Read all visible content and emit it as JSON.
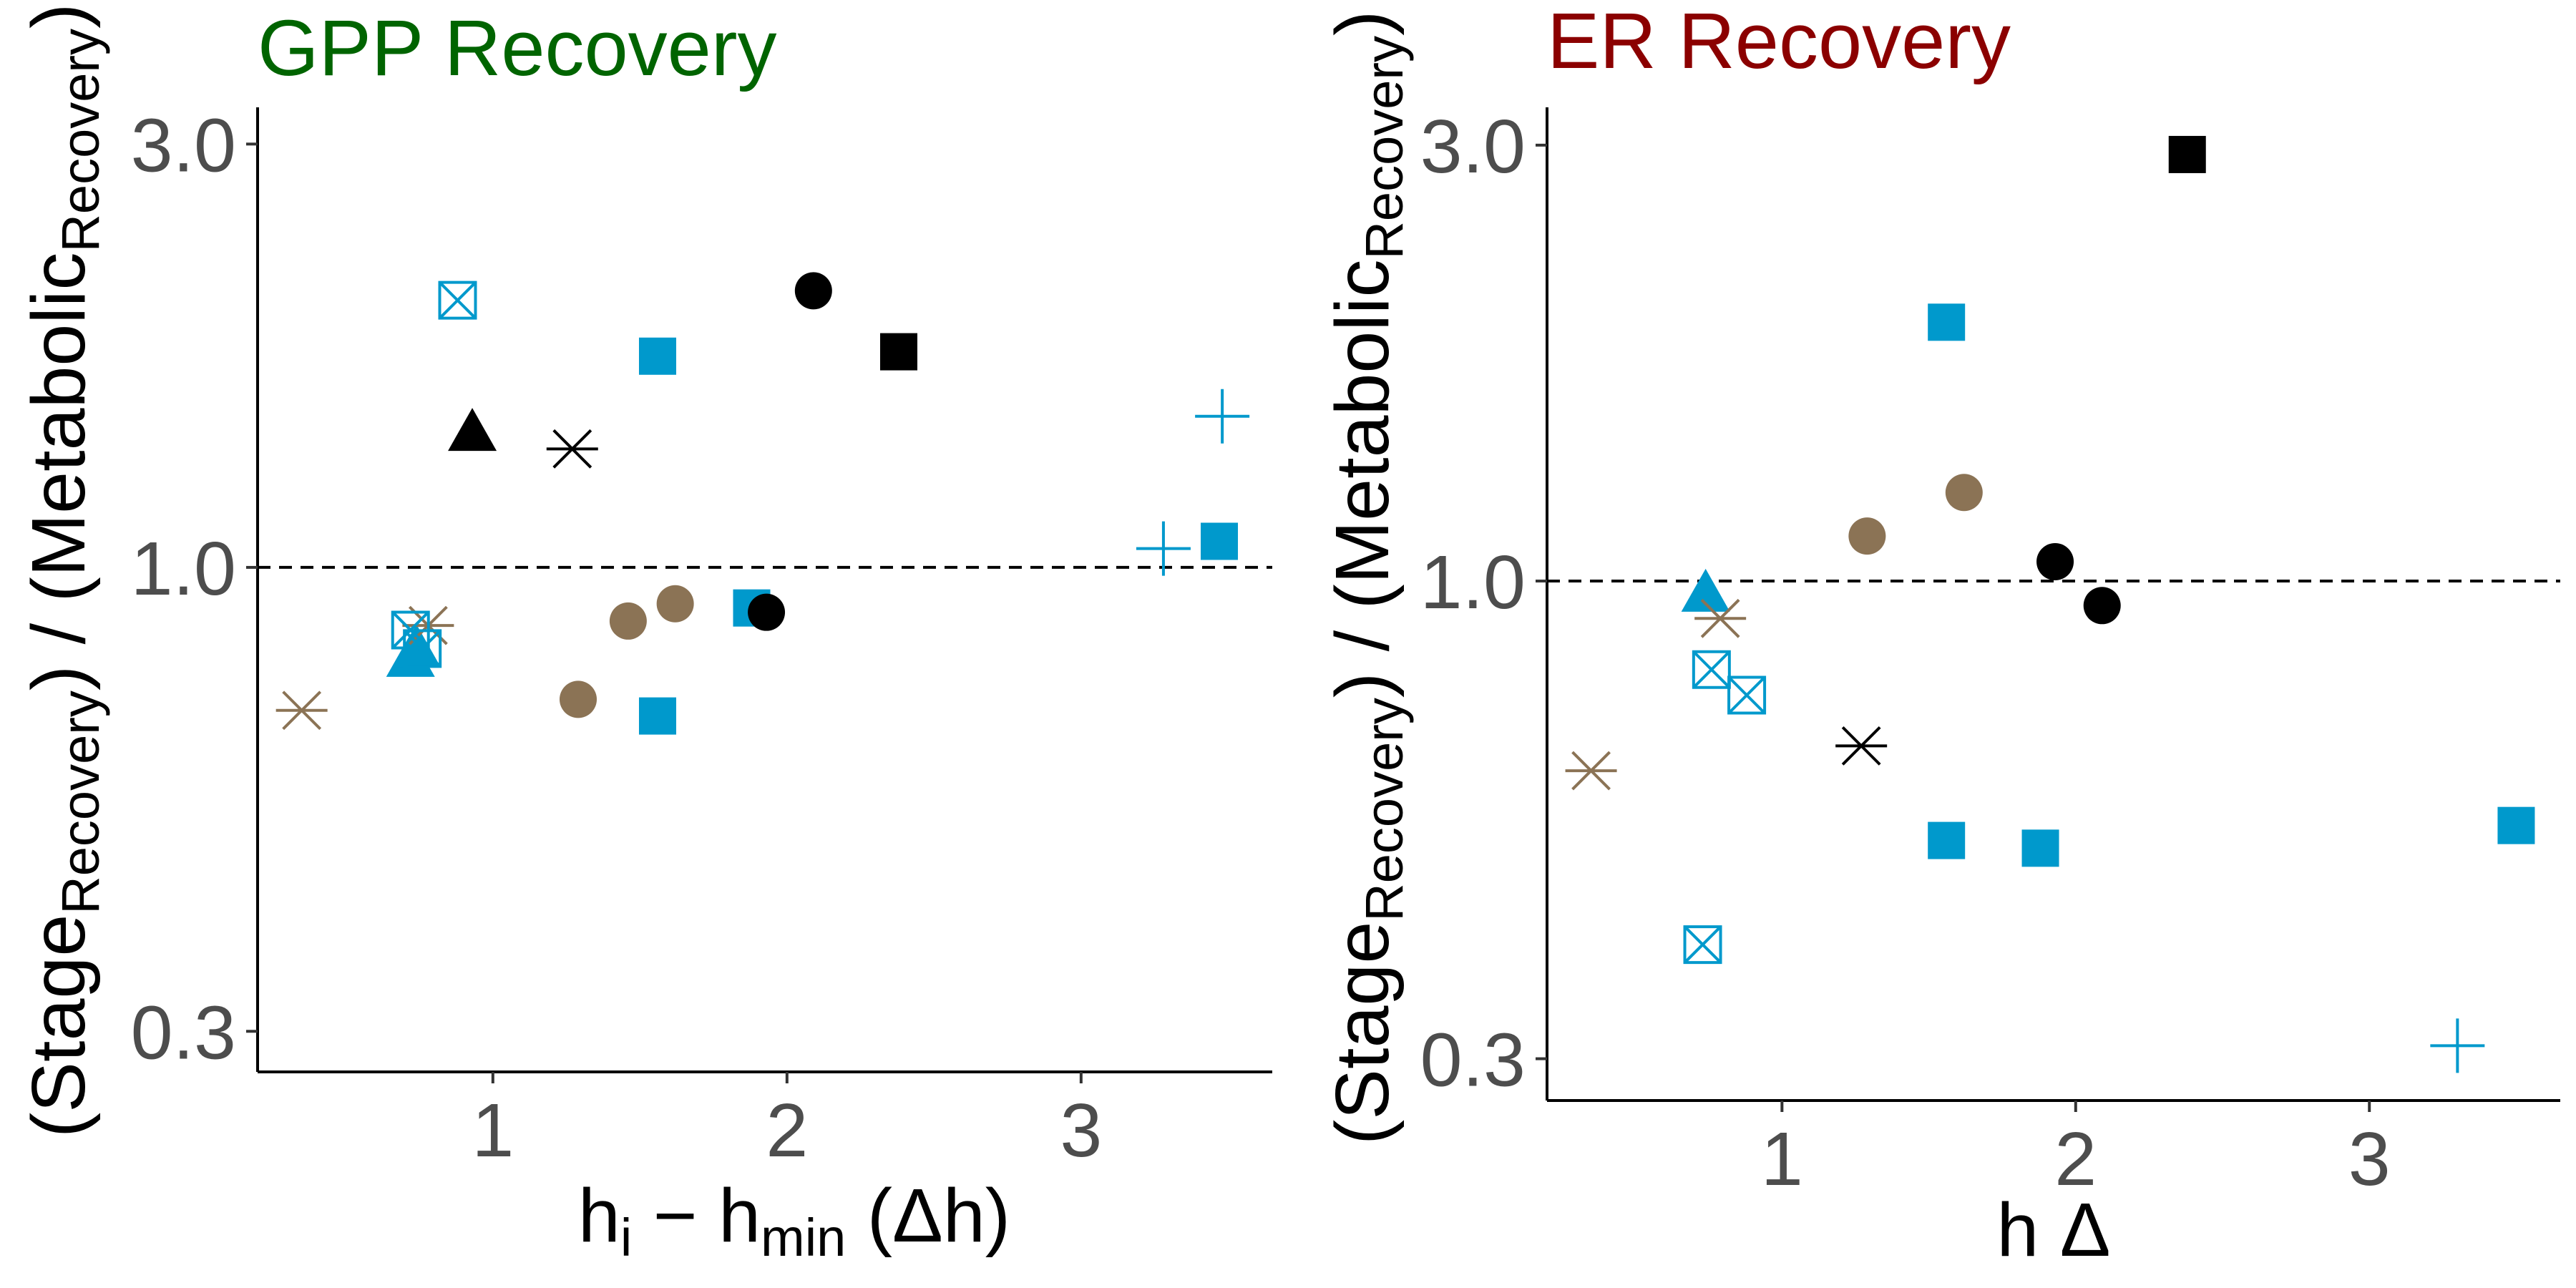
{
  "colors": {
    "gpp_title": "#006400",
    "er_title": "#8b0000",
    "black": "#000000",
    "blue": "#0099cc",
    "brown": "#8b7355"
  },
  "chart_data": [
    {
      "type": "scatter",
      "title": "GPP Recovery",
      "title_color": "#006400",
      "xlabel": "h_i − h_min (Δh)",
      "xlabel_parts": {
        "h1": "h",
        "sub1": "i",
        "op": " − ",
        "h2": "h",
        "sub2": "min",
        "paren": " (Δh)"
      },
      "ylabel_parts": {
        "a": "(Stage",
        "a_sub": "Recovery",
        "b": ") / (Metabolic",
        "b_sub": "Recovery",
        "c": ")"
      },
      "y_scale": "log",
      "xlim": [
        0.2,
        3.65
      ],
      "ylim": [
        0.27,
        3.3
      ],
      "x_ticks": [
        1,
        2,
        3
      ],
      "x_tick_labels": [
        "1",
        "2",
        "3"
      ],
      "y_ticks": [
        0.3,
        1.0,
        3.0
      ],
      "y_tick_labels": [
        "0.3",
        "1.0",
        "3.0"
      ],
      "reference_line": 1.0,
      "points": [
        {
          "x": 0.35,
          "y": 0.69,
          "shape": "asterisk",
          "color": "#8b7355"
        },
        {
          "x": 0.72,
          "y": 0.79,
          "shape": "triangle",
          "color": "#0099cc"
        },
        {
          "x": 0.74,
          "y": 0.81,
          "shape": "triangle",
          "color": "#0099cc"
        },
        {
          "x": 0.78,
          "y": 0.86,
          "shape": "asterisk",
          "color": "#8b7355"
        },
        {
          "x": 0.72,
          "y": 0.85,
          "shape": "boxx",
          "color": "#0099cc"
        },
        {
          "x": 0.76,
          "y": 0.81,
          "shape": "boxx",
          "color": "#0099cc"
        },
        {
          "x": 0.88,
          "y": 2.0,
          "shape": "boxx",
          "color": "#0099cc"
        },
        {
          "x": 0.93,
          "y": 1.42,
          "shape": "triangle",
          "color": "#000000"
        },
        {
          "x": 1.27,
          "y": 1.36,
          "shape": "asterisk",
          "color": "#000000"
        },
        {
          "x": 1.29,
          "y": 0.71,
          "shape": "circle",
          "color": "#8b7355"
        },
        {
          "x": 1.46,
          "y": 0.87,
          "shape": "circle",
          "color": "#8b7355"
        },
        {
          "x": 1.62,
          "y": 0.91,
          "shape": "circle",
          "color": "#8b7355"
        },
        {
          "x": 1.56,
          "y": 1.73,
          "shape": "square",
          "color": "#0099cc"
        },
        {
          "x": 1.56,
          "y": 0.68,
          "shape": "square",
          "color": "#0099cc"
        },
        {
          "x": 1.88,
          "y": 0.9,
          "shape": "square",
          "color": "#0099cc"
        },
        {
          "x": 1.93,
          "y": 0.89,
          "shape": "circle",
          "color": "#000000"
        },
        {
          "x": 2.09,
          "y": 2.05,
          "shape": "circle",
          "color": "#000000"
        },
        {
          "x": 2.38,
          "y": 1.75,
          "shape": "square",
          "color": "#000000"
        },
        {
          "x": 3.28,
          "y": 1.05,
          "shape": "plus",
          "color": "#0099cc"
        },
        {
          "x": 3.47,
          "y": 1.07,
          "shape": "square",
          "color": "#0099cc"
        },
        {
          "x": 3.48,
          "y": 1.48,
          "shape": "plus",
          "color": "#0099cc"
        }
      ]
    },
    {
      "type": "scatter",
      "title": "ER Recovery",
      "title_color": "#8b0000",
      "xlabel": "h Δ",
      "ylabel_parts": {
        "a": "(Stage",
        "a_sub": "Recovery",
        "b": ") / (Metabolic",
        "b_sub": "Recovery",
        "c": ")"
      },
      "y_scale": "log",
      "xlim": [
        0.2,
        3.65
      ],
      "ylim": [
        0.27,
        3.3
      ],
      "x_ticks": [
        1,
        2,
        3
      ],
      "x_tick_labels": [
        "1",
        "2",
        "3"
      ],
      "y_ticks": [
        0.3,
        1.0,
        3.0
      ],
      "y_tick_labels": [
        "0.3",
        "1.0",
        "3.0"
      ],
      "reference_line": 1.0,
      "points": [
        {
          "x": 0.35,
          "y": 0.62,
          "shape": "asterisk",
          "color": "#8b7355"
        },
        {
          "x": 0.74,
          "y": 0.97,
          "shape": "triangle",
          "color": "#0099cc"
        },
        {
          "x": 0.79,
          "y": 0.91,
          "shape": "asterisk",
          "color": "#8b7355"
        },
        {
          "x": 0.76,
          "y": 0.8,
          "shape": "boxx",
          "color": "#0099cc"
        },
        {
          "x": 0.88,
          "y": 0.75,
          "shape": "boxx",
          "color": "#0099cc"
        },
        {
          "x": 0.73,
          "y": 0.4,
          "shape": "boxx",
          "color": "#0099cc"
        },
        {
          "x": 1.27,
          "y": 0.66,
          "shape": "asterisk",
          "color": "#000000"
        },
        {
          "x": 1.29,
          "y": 1.12,
          "shape": "circle",
          "color": "#8b7355"
        },
        {
          "x": 1.62,
          "y": 1.25,
          "shape": "circle",
          "color": "#8b7355"
        },
        {
          "x": 1.56,
          "y": 1.92,
          "shape": "square",
          "color": "#0099cc"
        },
        {
          "x": 1.56,
          "y": 0.52,
          "shape": "square",
          "color": "#0099cc"
        },
        {
          "x": 1.88,
          "y": 0.51,
          "shape": "square",
          "color": "#0099cc"
        },
        {
          "x": 1.93,
          "y": 1.05,
          "shape": "circle",
          "color": "#000000"
        },
        {
          "x": 2.09,
          "y": 0.94,
          "shape": "circle",
          "color": "#000000"
        },
        {
          "x": 2.38,
          "y": 2.93,
          "shape": "square",
          "color": "#000000"
        },
        {
          "x": 3.3,
          "y": 0.31,
          "shape": "plus",
          "color": "#0099cc"
        },
        {
          "x": 3.5,
          "y": 0.54,
          "shape": "square",
          "color": "#0099cc"
        }
      ]
    }
  ]
}
